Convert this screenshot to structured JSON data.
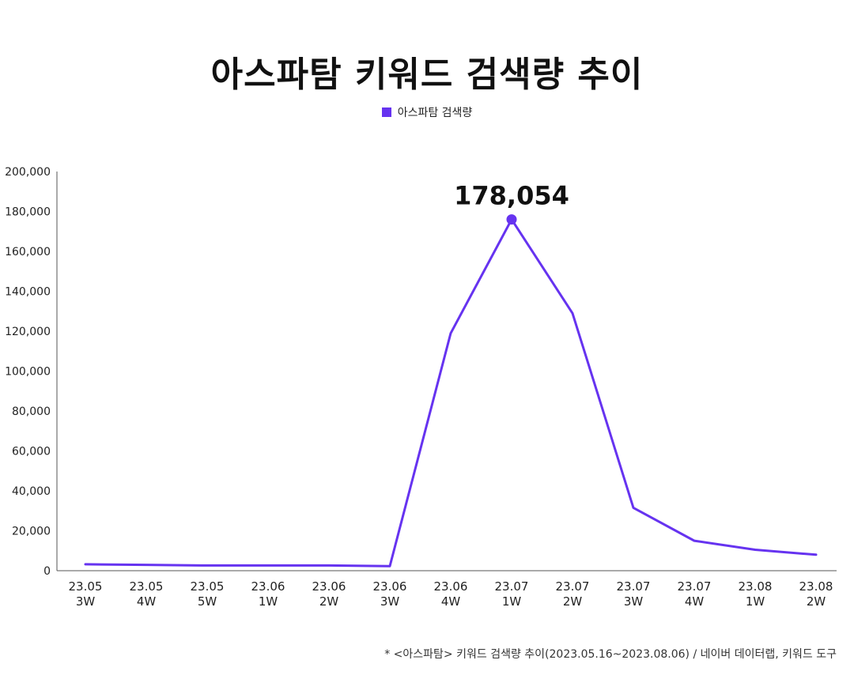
{
  "chart_data": {
    "type": "line",
    "title": "아스파탐 키워드 검색량 추이",
    "xlabel": "",
    "ylabel": "",
    "categories": [
      [
        "23.05",
        "3W"
      ],
      [
        "23.05",
        "4W"
      ],
      [
        "23.05",
        "5W"
      ],
      [
        "23.06",
        "1W"
      ],
      [
        "23.06",
        "2W"
      ],
      [
        "23.06",
        "3W"
      ],
      [
        "23.06",
        "4W"
      ],
      [
        "23.07",
        "1W"
      ],
      [
        "23.07",
        "2W"
      ],
      [
        "23.07",
        "3W"
      ],
      [
        "23.07",
        "4W"
      ],
      [
        "23.08",
        "1W"
      ],
      [
        "23.08",
        "2W"
      ]
    ],
    "series": [
      {
        "name": "아스파탐 검색량",
        "color": "#6633f0",
        "values": [
          3200,
          2900,
          2600,
          2600,
          2600,
          2300,
          119000,
          176000,
          129000,
          31500,
          15000,
          10500,
          8000
        ]
      }
    ],
    "ylim": [
      0,
      200000
    ],
    "yticks": [
      "0",
      "20,000",
      "40,000",
      "60,000",
      "80,000",
      "100,000",
      "120,000",
      "140,000",
      "160,000",
      "180,000",
      "200,000"
    ],
    "ytick_values": [
      0,
      20000,
      40000,
      60000,
      80000,
      100000,
      120000,
      140000,
      160000,
      180000,
      200000
    ],
    "annotation": {
      "text": "178,054",
      "category_index": 7
    },
    "grid": false,
    "legend_position": "top-center"
  },
  "source_note": "* <아스파탐> 키워드 검색량 추이(2023.05.16~2023.08.06) / 네이버 데이터랩, 키워드 도구"
}
